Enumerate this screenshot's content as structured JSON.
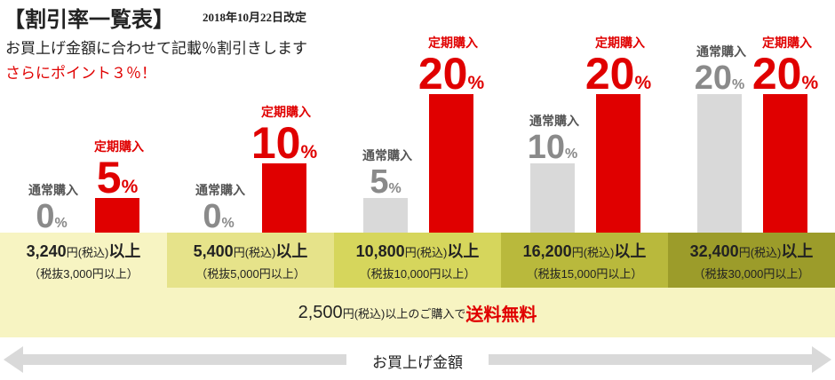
{
  "header": {
    "title": "【割引率一覧表】",
    "date": "2018年10月22日改定",
    "subtitle": "お買上げ金額に合わせて記載％割引きします",
    "points_note": "さらにポイント３％！"
  },
  "labels": {
    "regular": "通常購入",
    "subscription": "定期購入",
    "percent": "%"
  },
  "chart_data": {
    "type": "bar",
    "categories": [
      "3,240円(税込)以上",
      "5,400円(税込)以上",
      "10,800円(税込)以上",
      "16,200円(税込)以上",
      "32,400円(税込)以上"
    ],
    "series": [
      {
        "name": "通常購入",
        "values": [
          0,
          0,
          5,
          10,
          20
        ]
      },
      {
        "name": "定期購入",
        "values": [
          5,
          10,
          20,
          20,
          20
        ]
      }
    ],
    "unit": "%"
  },
  "tiers": [
    {
      "amount": "3,240",
      "yen_tax": "円(税込)",
      "suffix": "以上",
      "tax_excluded": "（税抜3,000円以上）"
    },
    {
      "amount": "5,400",
      "yen_tax": "円(税込)",
      "suffix": "以上",
      "tax_excluded": "（税抜5,000円以上）"
    },
    {
      "amount": "10,800",
      "yen_tax": "円(税込)",
      "suffix": "以上",
      "tax_excluded": "（税抜10,000円以上）"
    },
    {
      "amount": "16,200",
      "yen_tax": "円(税込)",
      "suffix": "以上",
      "tax_excluded": "（税抜15,000円以上）"
    },
    {
      "amount": "32,400",
      "yen_tax": "円(税込)",
      "suffix": "以上",
      "tax_excluded": "（税抜30,000円以上）"
    }
  ],
  "shipping": {
    "amount": "2,500",
    "yen_tax": "円(税込)",
    "middle": "以上のご購入で",
    "free_label": "送料",
    "free_value": "無料"
  },
  "arrow_label": "お買上げ金額",
  "colors": {
    "regular_bar": "#d9d9d9",
    "subscription_bar": "#e00000",
    "tier_bg": [
      "#f7f4c2",
      "#e6e38a",
      "#d6d65c",
      "#b9b93c",
      "#9c9c2a"
    ],
    "shipping_bg": "#f7f4c2",
    "arrow": "#d9d9d9"
  }
}
